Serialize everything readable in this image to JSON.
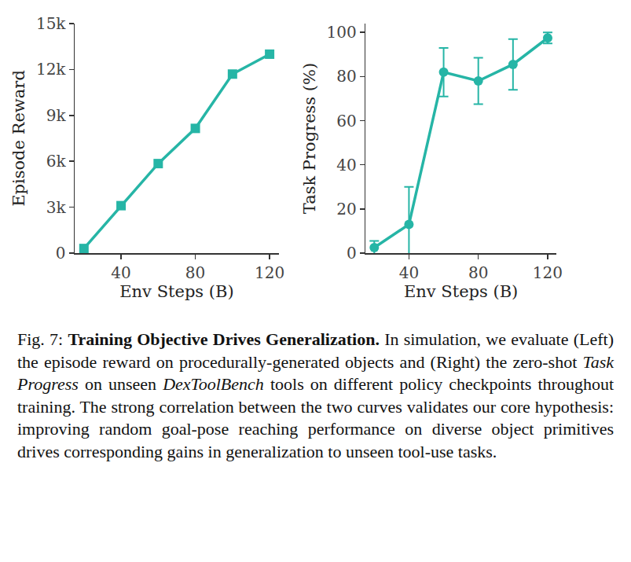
{
  "chart_data": [
    {
      "type": "line",
      "x": [
        20,
        40,
        60,
        80,
        100,
        120
      ],
      "values": [
        300,
        3100,
        5850,
        8150,
        11700,
        13000
      ],
      "xlabel": "Env Steps (B)",
      "ylabel": "Episode Reward",
      "xlim": [
        15,
        125
      ],
      "xticks": [
        40,
        80,
        120
      ],
      "ylim": [
        0,
        15000
      ],
      "yticks": [
        0,
        {
          "value": 3000,
          "label": "3k"
        },
        {
          "value": 6000,
          "label": "6k"
        },
        {
          "value": 9000,
          "label": "9k"
        },
        {
          "value": 12000,
          "label": "12k"
        },
        {
          "value": 15000,
          "label": "15k"
        }
      ],
      "color": "#26b5a6",
      "marker": "square",
      "line_style": "solid",
      "grid": false
    },
    {
      "type": "line",
      "x": [
        20,
        40,
        60,
        80,
        100,
        120
      ],
      "values": [
        2.5,
        13,
        82,
        78,
        85.5,
        97.5
      ],
      "error": [
        3,
        17,
        11,
        10.5,
        11.5,
        2.5
      ],
      "xlabel": "Env Steps (B)",
      "ylabel": "Task Progress (%)",
      "xlim": [
        15,
        125
      ],
      "xticks": [
        40,
        80,
        120
      ],
      "ylim": [
        0,
        104
      ],
      "yticks": [
        0,
        20,
        40,
        60,
        80,
        100
      ],
      "color": "#26b5a6",
      "marker": "circle",
      "line_style": "solid",
      "grid": false
    }
  ],
  "caption": [
    {
      "text": "Fig. 7: ",
      "style": "normal"
    },
    {
      "text": "Training Objective Drives Generalization.",
      "style": "bold"
    },
    {
      "text": " In simulation, we evaluate (Left) the episode reward on procedurally-generated objects and (Right) the zero-shot ",
      "style": "normal"
    },
    {
      "text": "Task Progress",
      "style": "italic"
    },
    {
      "text": " on unseen ",
      "style": "normal"
    },
    {
      "text": "DexToolBench",
      "style": "italic"
    },
    {
      "text": " tools on different policy checkpoints throughout training. The strong correlation between the two curves validates our core hypothesis: improving random goal-pose reaching performance on diverse object primitives drives corresponding gains in generalization to unseen tool-use tasks.",
      "style": "normal"
    }
  ]
}
